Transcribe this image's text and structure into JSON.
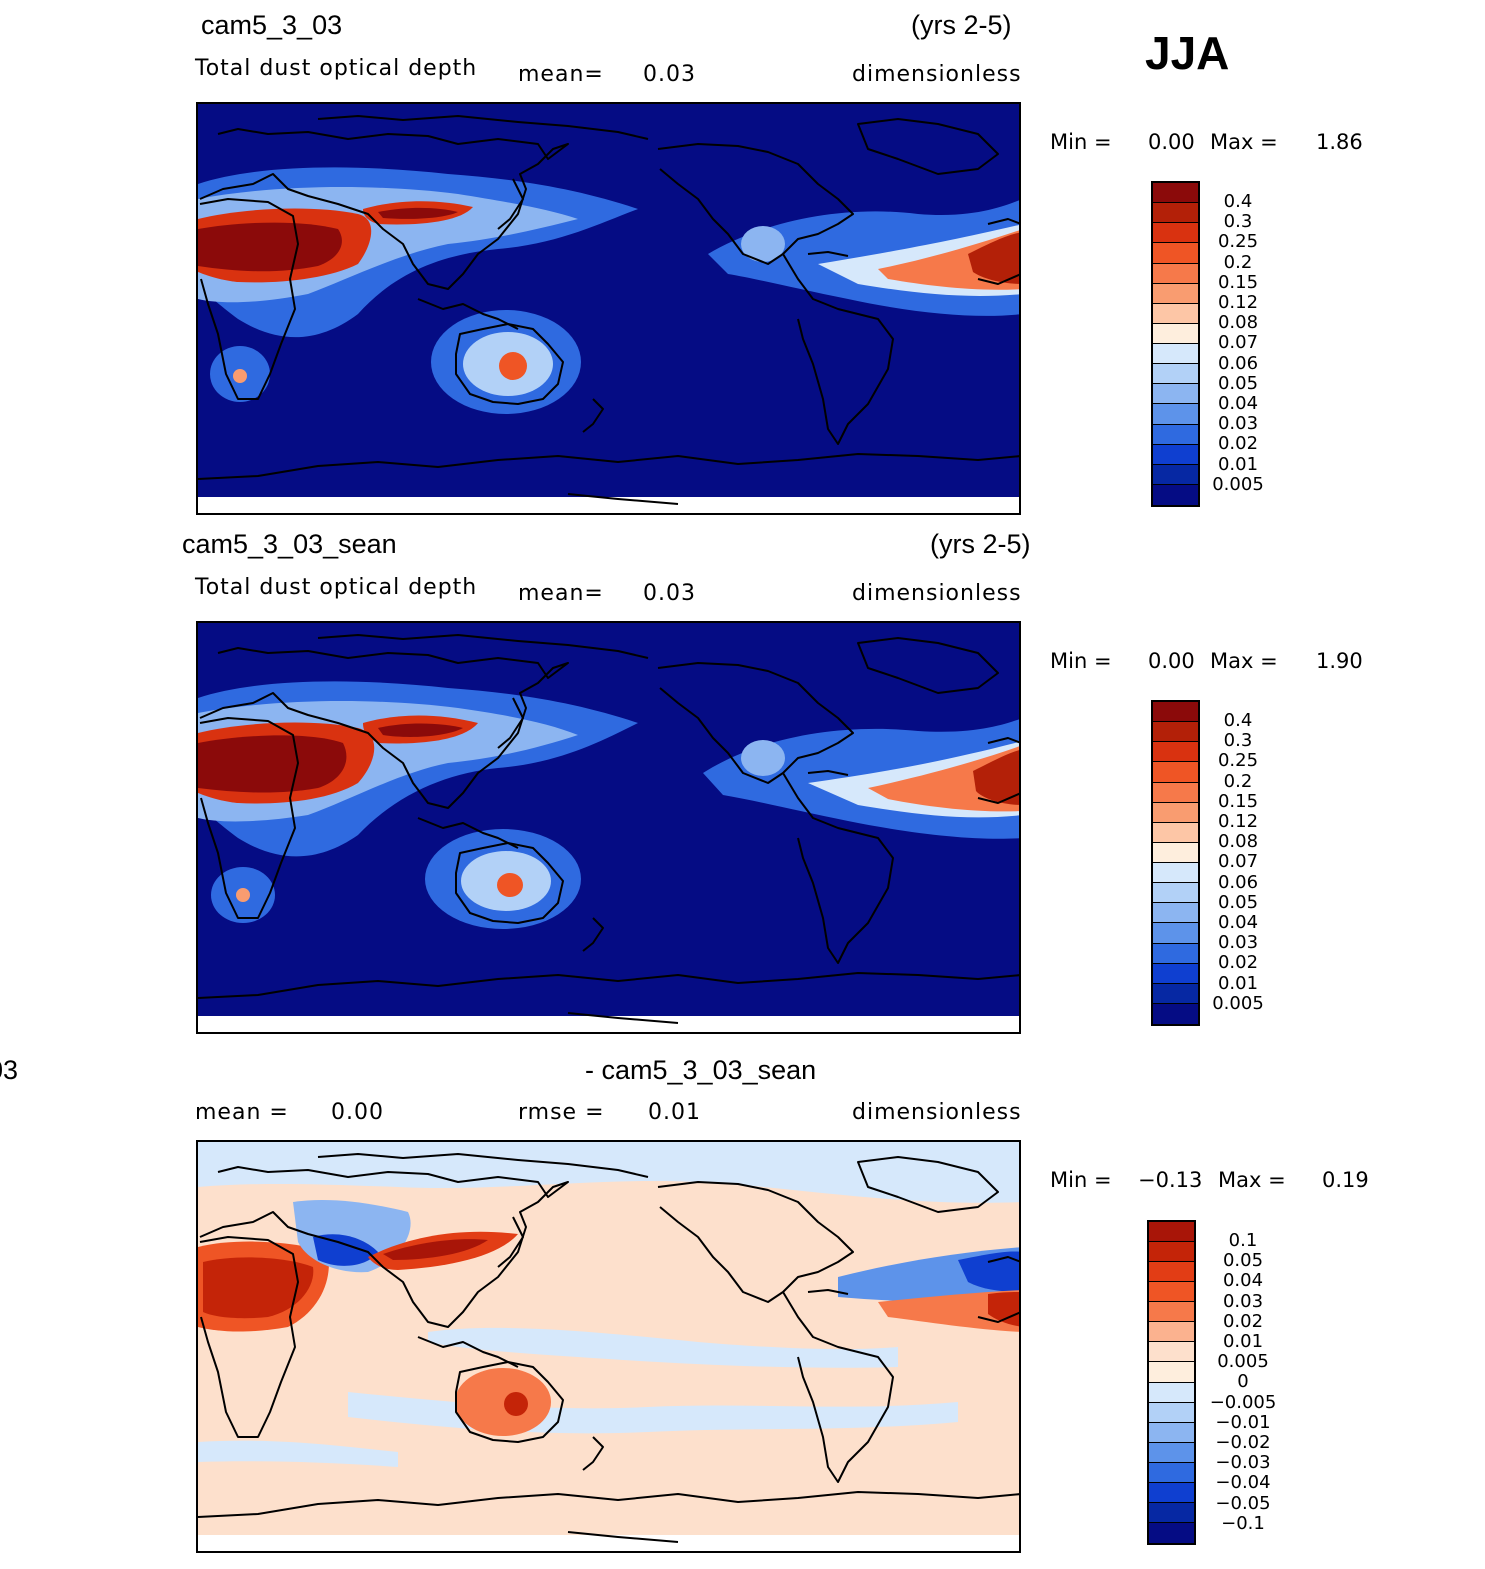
{
  "season": "JJA",
  "panels": [
    {
      "title": "cam5_3_03",
      "years": "(yrs 2-5)",
      "variable": "Total dust optical depth",
      "mean_label": "mean=",
      "mean_value": "0.03",
      "units": "dimensionless",
      "min_label": "Min =",
      "min_value": "0.00",
      "max_label": "Max =",
      "max_value": "1.86",
      "colorbar": {
        "levels": [
          "0.4",
          "0.3",
          "0.25",
          "0.2",
          "0.15",
          "0.12",
          "0.08",
          "0.07",
          "0.06",
          "0.05",
          "0.04",
          "0.03",
          "0.02",
          "0.01",
          "0.005"
        ],
        "colors": [
          "#8b0a0a",
          "#b32008",
          "#d93210",
          "#ef5525",
          "#f6794a",
          "#f99c70",
          "#fdc6a6",
          "#feeedd",
          "#d6e8fb",
          "#b2d1f7",
          "#8cb5f1",
          "#5d93ea",
          "#2f6ae0",
          "#0f3fd0",
          "#0628a3",
          "#050c84"
        ]
      }
    },
    {
      "title": "cam5_3_03_sean",
      "years": "(yrs 2-5)",
      "variable": "Total dust optical depth",
      "mean_label": "mean=",
      "mean_value": "0.03",
      "units": "dimensionless",
      "min_label": "Min =",
      "min_value": "0.00",
      "max_label": "Max =",
      "max_value": "1.90",
      "colorbar": {
        "levels": [
          "0.4",
          "0.3",
          "0.25",
          "0.2",
          "0.15",
          "0.12",
          "0.08",
          "0.07",
          "0.06",
          "0.05",
          "0.04",
          "0.03",
          "0.02",
          "0.01",
          "0.005"
        ],
        "colors": [
          "#8b0a0a",
          "#b32008",
          "#d93210",
          "#ef5525",
          "#f6794a",
          "#f99c70",
          "#fdc6a6",
          "#feeedd",
          "#d6e8fb",
          "#b2d1f7",
          "#8cb5f1",
          "#5d93ea",
          "#2f6ae0",
          "#0f3fd0",
          "#0628a3",
          "#050c84"
        ]
      }
    },
    {
      "title_left": "03",
      "title": "- cam5_3_03_sean",
      "mean_label": "mean =",
      "mean_value": "0.00",
      "rmse_label": "rmse =",
      "rmse_value": "0.01",
      "units": "dimensionless",
      "min_label": "Min =",
      "min_value": "−0.13",
      "max_label": "Max =",
      "max_value": "0.19",
      "colorbar": {
        "levels": [
          "0.1",
          "0.05",
          "0.04",
          "0.03",
          "0.02",
          "0.01",
          "0.005",
          "0",
          "−0.005",
          "−0.01",
          "−0.02",
          "−0.03",
          "−0.04",
          "−0.05",
          "−0.1"
        ],
        "colors": [
          "#a81508",
          "#c42408",
          "#e23d15",
          "#ef5525",
          "#f6794a",
          "#fbb28f",
          "#fde0cc",
          "#feeedd",
          "#d6e8fb",
          "#b2d1f7",
          "#8cb5f1",
          "#5d93ea",
          "#2f6ae0",
          "#0f3fd0",
          "#0628a3",
          "#050c84"
        ]
      }
    }
  ]
}
